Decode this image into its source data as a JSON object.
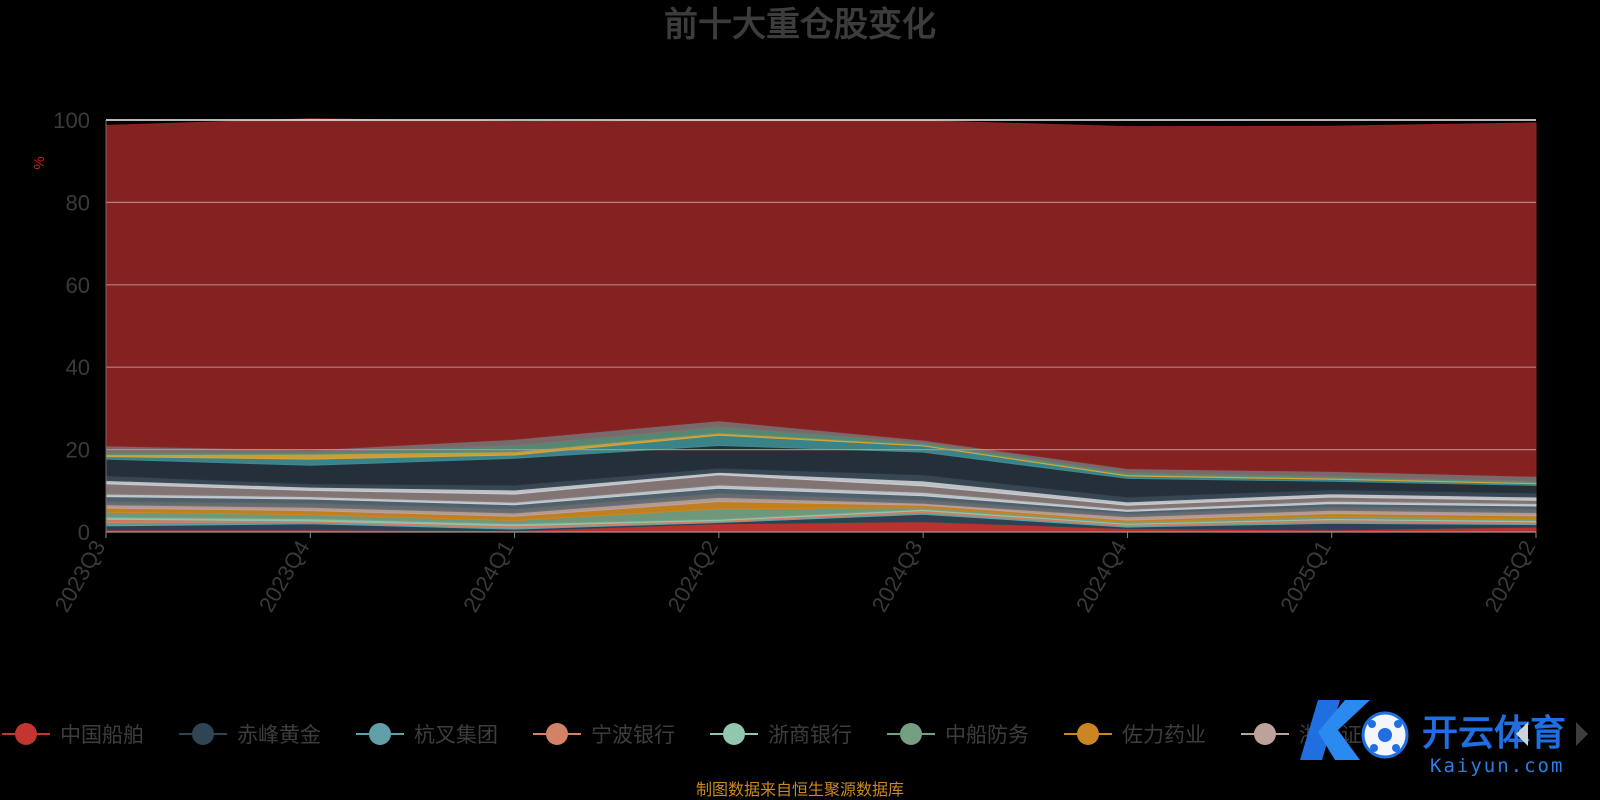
{
  "chart_data": {
    "type": "area",
    "title": "前十大重仓股变化",
    "ylabel": "%",
    "ylim": [
      0,
      100
    ],
    "yticks": [
      "0",
      "20",
      "40",
      "60",
      "80",
      "100"
    ],
    "grid": true,
    "stacked": true,
    "categories": [
      "2023Q3",
      "2023Q4",
      "2024Q1",
      "2024Q2",
      "2024Q3",
      "2024Q4",
      "2025Q1",
      "2025Q2"
    ],
    "series": [
      {
        "name": "中国船舶",
        "color": "#c23531",
        "values": [
          0.5,
          0.5,
          0.3,
          2.0,
          2.5,
          0.8,
          0.5,
          1.2
        ]
      },
      {
        "name": "赤峰黄金",
        "color": "#2f4554",
        "values": [
          1.0,
          1.5,
          0.4,
          0.3,
          1.8,
          0.4,
          1.6,
          0.6
        ]
      },
      {
        "name": "杭叉集团",
        "color": "#61a0a8",
        "values": [
          0.8,
          0.4,
          0.3,
          0.2,
          0.4,
          0.3,
          0.4,
          0.3
        ]
      },
      {
        "name": "宁波银行",
        "color": "#d48265",
        "values": [
          0.8,
          0.3,
          0.5,
          0.3,
          0.5,
          0.4,
          0.5,
          0.4
        ]
      },
      {
        "name": "浙商银行",
        "color": "#91c7ae",
        "values": [
          0.5,
          0.5,
          0.5,
          0.3,
          0.3,
          0.2,
          0.3,
          0.3
        ]
      },
      {
        "name": "中船防务",
        "color": "#749f83",
        "values": [
          1.2,
          1.0,
          0.8,
          2.5,
          0.4,
          0.3,
          0.4,
          0.3
        ]
      },
      {
        "name": "佐力药业",
        "color": "#ca8622",
        "values": [
          1.0,
          1.0,
          1.0,
          1.8,
          0.6,
          0.5,
          0.8,
          0.8
        ]
      },
      {
        "name": "浙商证券",
        "color": "#bda29a",
        "values": [
          0.8,
          0.8,
          0.8,
          1.0,
          0.5,
          0.8,
          0.8,
          0.8
        ]
      },
      {
        "name": "",
        "color": "#6e7074",
        "values": [
          0.8,
          1.0,
          1.0,
          1.0,
          0.8,
          0.8,
          0.8,
          0.8
        ]
      },
      {
        "name": "",
        "color": "#546570",
        "values": [
          1.2,
          1.0,
          1.0,
          1.2,
          1.0,
          0.5,
          0.8,
          0.8
        ]
      },
      {
        "name": "",
        "color": "#c4ccd3",
        "values": [
          0.6,
          0.6,
          0.6,
          0.8,
          0.8,
          0.5,
          0.6,
          0.6
        ]
      },
      {
        "name": "",
        "color": "#8a7a7a",
        "values": [
          2.5,
          1.5,
          2.0,
          2.5,
          1.6,
          1.0,
          1.0,
          0.8
        ]
      },
      {
        "name": "",
        "color": "#c8ccd1",
        "values": [
          0.8,
          0.8,
          1.0,
          0.6,
          1.2,
          0.8,
          0.8,
          0.8
        ]
      },
      {
        "name": "",
        "color": "#3a4a56",
        "values": [
          1.2,
          0.8,
          1.2,
          1.0,
          1.5,
          1.2,
          1.0,
          1.0
        ]
      },
      {
        "name": "",
        "color": "#26323d",
        "values": [
          4.0,
          4.5,
          6.5,
          5.5,
          5.5,
          4.5,
          2.0,
          1.8
        ]
      },
      {
        "name": "",
        "color": "#3d8a90",
        "values": [
          0.6,
          1.5,
          0.8,
          2.5,
          1.5,
          0.6,
          0.5,
          0.4
        ]
      },
      {
        "name": "",
        "color": "#d4a53a",
        "values": [
          0.5,
          1.2,
          0.8,
          0.5,
          0.3,
          0.3,
          0.3,
          0.3
        ]
      },
      {
        "name": "",
        "color": "#5a8f78",
        "values": [
          0.6,
          0.5,
          1.5,
          1.5,
          0.5,
          0.5,
          0.4,
          0.3
        ]
      },
      {
        "name": "",
        "color": "#7e6f70",
        "values": [
          1.5,
          0.5,
          1.5,
          1.5,
          0.6,
          1.0,
          1.2,
          1.2
        ]
      },
      {
        "name": "",
        "color": "#8b2423",
        "values": [
          77.8,
          80.4,
          77.1,
          72.8,
          77.5,
          83.0,
          83.8,
          85.8
        ]
      }
    ],
    "legend_position": "bottom",
    "legend_items": [
      "中国船舶",
      "赤峰黄金",
      "杭叉集团",
      "宁波银行",
      "浙商银行",
      "中船防务",
      "佐力药业",
      "浙商证券"
    ]
  },
  "source_note": "制图数据来自恒生聚源数据库",
  "watermark": {
    "brand": "开云体育",
    "domain": "Kaiyun.com"
  }
}
